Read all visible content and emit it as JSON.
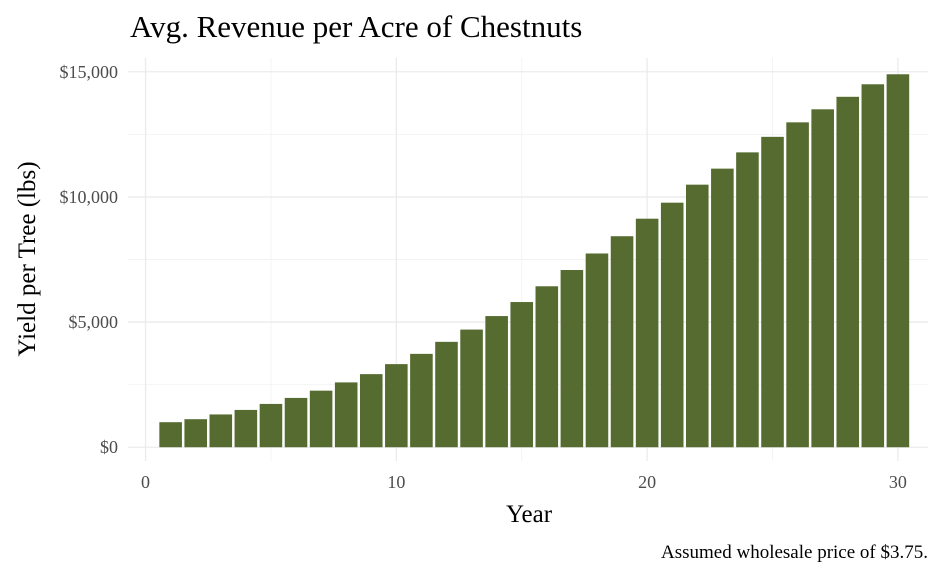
{
  "chart_data": {
    "type": "bar",
    "title": "Avg. Revenue per Acre of Chestnuts",
    "xlabel": "Year",
    "ylabel": "Yield per Tree (lbs)",
    "caption": "Assumed wholesale price of $3.75.",
    "x": [
      1,
      2,
      3,
      4,
      5,
      6,
      7,
      8,
      9,
      10,
      11,
      12,
      13,
      14,
      15,
      16,
      17,
      18,
      19,
      20,
      21,
      22,
      23,
      24,
      25,
      26,
      27,
      28,
      29,
      30
    ],
    "values": [
      1000,
      1120,
      1310,
      1490,
      1730,
      1970,
      2260,
      2590,
      2920,
      3320,
      3730,
      4210,
      4700,
      5240,
      5800,
      6430,
      7080,
      7740,
      8430,
      9130,
      9770,
      10490,
      11130,
      11780,
      12400,
      12980,
      13500,
      14000,
      14500,
      14900
    ],
    "xlim": [
      -0.7,
      31.2
    ],
    "ylim": [
      -550,
      15550
    ],
    "xticks": [
      0,
      10,
      20,
      30
    ],
    "xtick_labels": [
      "0",
      "10",
      "20",
      "30"
    ],
    "yticks": [
      0,
      5000,
      10000,
      15000
    ],
    "ytick_labels": [
      "$0",
      "$5,000",
      "$10,000",
      "$15,000"
    ],
    "grid": true,
    "legend": "none",
    "colors": {
      "bar": "#556b2f"
    }
  }
}
